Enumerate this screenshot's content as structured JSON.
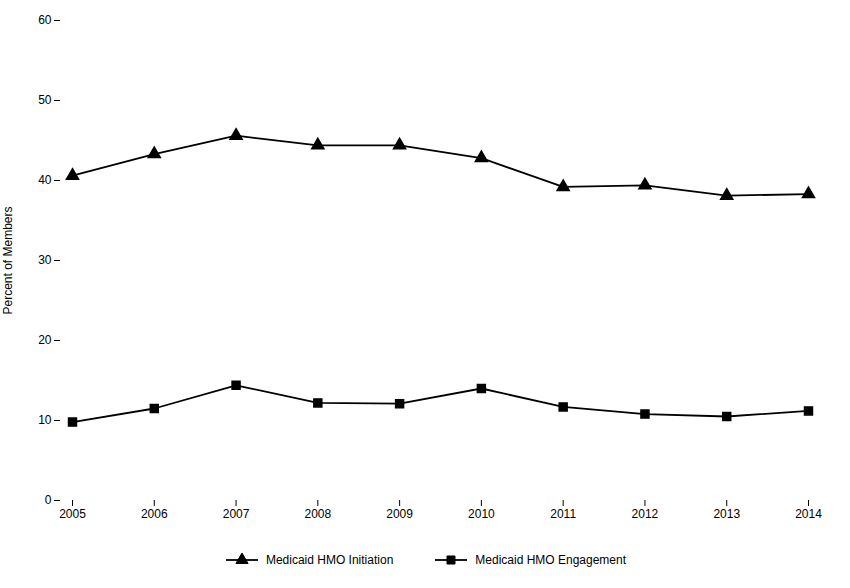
{
  "chart_data": {
    "type": "line",
    "x": [
      2005,
      2006,
      2007,
      2008,
      2009,
      2010,
      2011,
      2012,
      2013,
      2014
    ],
    "series": [
      {
        "name": "Medicaid HMO Initiation",
        "color": "#000000",
        "marker": "triangle",
        "values": [
          40.6,
          43.3,
          45.6,
          44.4,
          44.4,
          42.8,
          39.2,
          39.4,
          38.1,
          38.3
        ]
      },
      {
        "name": "Medicaid HMO Engagement",
        "color": "#000000",
        "marker": "square",
        "values": [
          9.8,
          11.5,
          14.4,
          12.2,
          12.1,
          14.0,
          11.7,
          10.8,
          10.5,
          11.2
        ]
      }
    ],
    "ylabel": "Percent of Members",
    "xlim": [
      2005,
      2014
    ],
    "xticks": [
      2005,
      2006,
      2007,
      2008,
      2009,
      2010,
      2011,
      2012,
      2013,
      2014
    ],
    "ylim": [
      0,
      60
    ],
    "yticks": [
      0,
      10,
      20,
      30,
      40,
      50,
      60
    ],
    "grid": false,
    "legend": "bottom"
  }
}
